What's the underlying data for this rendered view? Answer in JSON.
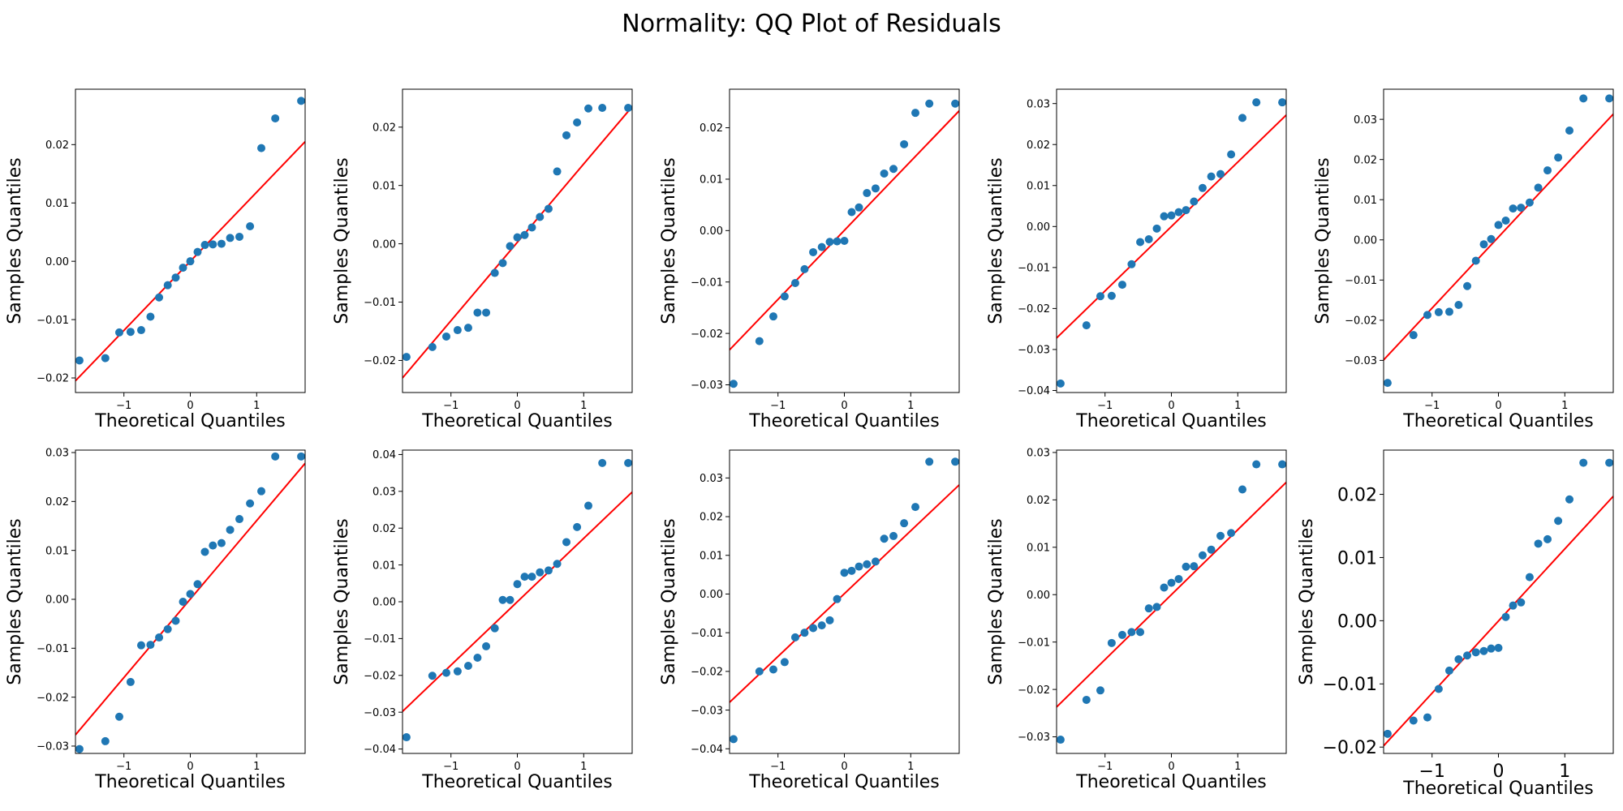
{
  "title": "Normality: QQ Plot of Residuals",
  "theme": {
    "point_color": "#1f77b4",
    "line_color": "#ff0000"
  },
  "chart_data": [
    {
      "type": "scatter",
      "xlabel": "Theoretical Quantiles",
      "ylabel": "Samples Quantiles",
      "xlim": [
        -1.73,
        1.73
      ],
      "ylim": [
        -0.0225,
        0.0295
      ],
      "xticks": [
        -1,
        0,
        1
      ],
      "xtick_labels": [
        "−1",
        "0",
        "1"
      ],
      "yticks": [
        -0.02,
        -0.01,
        0.0,
        0.01,
        0.02
      ],
      "ytick_labels": [
        "−0.02",
        "−0.01",
        "0.00",
        "0.01",
        "0.02"
      ],
      "line": [
        [
          -1.73,
          -0.0205
        ],
        [
          1.73,
          0.0205
        ]
      ],
      "x": [
        -1.67,
        -1.28,
        -1.07,
        -0.9,
        -0.74,
        -0.6,
        -0.47,
        -0.34,
        -0.22,
        -0.11,
        0.0,
        0.11,
        0.22,
        0.34,
        0.47,
        0.6,
        0.74,
        0.9,
        1.07,
        1.28,
        1.67
      ],
      "y": [
        -0.017,
        -0.0166,
        -0.0122,
        -0.0121,
        -0.0118,
        -0.0095,
        -0.0062,
        -0.0041,
        -0.0028,
        -0.0011,
        0.0,
        0.0016,
        0.0028,
        0.0029,
        0.003,
        0.004,
        0.0042,
        0.006,
        0.0194,
        0.0245,
        0.0275
      ]
    },
    {
      "type": "scatter",
      "xlabel": "Theoretical Quantiles",
      "ylabel": "Samples Quantiles",
      "xlim": [
        -1.73,
        1.73
      ],
      "ylim": [
        -0.0255,
        0.0265
      ],
      "xticks": [
        -1,
        0,
        1
      ],
      "xtick_labels": [
        "−1",
        "0",
        "1"
      ],
      "yticks": [
        -0.02,
        -0.01,
        0.0,
        0.01,
        0.02
      ],
      "ytick_labels": [
        "−0.02",
        "−0.01",
        "0.00",
        "0.01",
        "0.02"
      ],
      "line": [
        [
          -1.73,
          -0.023
        ],
        [
          1.73,
          0.0235
        ]
      ],
      "x": [
        -1.67,
        -1.28,
        -1.07,
        -0.9,
        -0.74,
        -0.6,
        -0.47,
        -0.34,
        -0.22,
        -0.11,
        0.0,
        0.11,
        0.22,
        0.34,
        0.47,
        0.6,
        0.74,
        0.9,
        1.07,
        1.28,
        1.67
      ],
      "y": [
        -0.0194,
        -0.0177,
        -0.0159,
        -0.0148,
        -0.0144,
        -0.0118,
        -0.0118,
        -0.005,
        -0.0033,
        -0.0004,
        0.0011,
        0.0015,
        0.0028,
        0.0046,
        0.006,
        0.0124,
        0.0186,
        0.0208,
        0.0232,
        0.0233,
        0.0233
      ]
    },
    {
      "type": "scatter",
      "xlabel": "Theoretical Quantiles",
      "ylabel": "Samples Quantiles",
      "xlim": [
        -1.73,
        1.73
      ],
      "ylim": [
        -0.0315,
        0.0275
      ],
      "xticks": [
        -1,
        0,
        1
      ],
      "xtick_labels": [
        "−1",
        "0",
        "1"
      ],
      "yticks": [
        -0.03,
        -0.02,
        -0.01,
        0.0,
        0.01,
        0.02
      ],
      "ytick_labels": [
        "−0.03",
        "−0.02",
        "−0.01",
        "0.00",
        "0.01",
        "0.02"
      ],
      "line": [
        [
          -1.73,
          -0.0232
        ],
        [
          1.73,
          0.0233
        ]
      ],
      "x": [
        -1.67,
        -1.28,
        -1.07,
        -0.9,
        -0.74,
        -0.6,
        -0.47,
        -0.34,
        -0.22,
        -0.11,
        0.0,
        0.11,
        0.22,
        0.34,
        0.47,
        0.6,
        0.74,
        0.9,
        1.07,
        1.28,
        1.67
      ],
      "y": [
        -0.0298,
        -0.0215,
        -0.0167,
        -0.0128,
        -0.0102,
        -0.0075,
        -0.0042,
        -0.0032,
        -0.0022,
        -0.0021,
        -0.002,
        0.0036,
        0.0045,
        0.0073,
        0.0082,
        0.0111,
        0.012,
        0.0168,
        0.0229,
        0.0247,
        0.0247
      ]
    },
    {
      "type": "scatter",
      "xlabel": "Theoretical Quantiles",
      "ylabel": "Samples Quantiles",
      "xlim": [
        -1.73,
        1.73
      ],
      "ylim": [
        -0.0405,
        0.0335
      ],
      "xticks": [
        -1,
        0,
        1
      ],
      "xtick_labels": [
        "−1",
        "0",
        "1"
      ],
      "yticks": [
        -0.04,
        -0.03,
        -0.02,
        -0.01,
        0.0,
        0.01,
        0.02,
        0.03
      ],
      "ytick_labels": [
        "−0.04",
        "−0.03",
        "−0.02",
        "−0.01",
        "0.00",
        "0.01",
        "0.02",
        "0.03"
      ],
      "line": [
        [
          -1.73,
          -0.0272
        ],
        [
          1.73,
          0.0272
        ]
      ],
      "x": [
        -1.67,
        -1.28,
        -1.07,
        -0.9,
        -0.74,
        -0.6,
        -0.47,
        -0.34,
        -0.22,
        -0.11,
        0.0,
        0.11,
        0.22,
        0.34,
        0.47,
        0.6,
        0.74,
        0.9,
        1.07,
        1.28,
        1.67
      ],
      "y": [
        -0.0383,
        -0.0241,
        -0.017,
        -0.0169,
        -0.0142,
        -0.0092,
        -0.0038,
        -0.0031,
        -0.0005,
        0.0025,
        0.0027,
        0.0035,
        0.004,
        0.0061,
        0.0094,
        0.0122,
        0.0128,
        0.0176,
        0.0265,
        0.0303,
        0.0303
      ]
    },
    {
      "type": "scatter",
      "xlabel": "Theoretical Quantiles",
      "ylabel": "Samples Quantiles",
      "xlim": [
        -1.73,
        1.73
      ],
      "ylim": [
        -0.038,
        0.0375
      ],
      "xticks": [
        -1,
        0,
        1
      ],
      "xtick_labels": [
        "−1",
        "0",
        "1"
      ],
      "yticks": [
        -0.03,
        -0.02,
        -0.01,
        0.0,
        0.01,
        0.02,
        0.03
      ],
      "ytick_labels": [
        "−0.03",
        "−0.02",
        "−0.01",
        "0.00",
        "0.01",
        "0.02",
        "0.03"
      ],
      "line": [
        [
          -1.73,
          -0.0299
        ],
        [
          1.73,
          0.0313
        ]
      ],
      "x": [
        -1.67,
        -1.28,
        -1.07,
        -0.9,
        -0.74,
        -0.6,
        -0.47,
        -0.34,
        -0.22,
        -0.11,
        0.0,
        0.11,
        0.22,
        0.34,
        0.47,
        0.6,
        0.74,
        0.9,
        1.07,
        1.28,
        1.67
      ],
      "y": [
        -0.0356,
        -0.0237,
        -0.0187,
        -0.018,
        -0.0179,
        -0.0162,
        -0.0115,
        -0.0052,
        -0.0011,
        0.0002,
        0.0037,
        0.0048,
        0.0078,
        0.008,
        0.0093,
        0.013,
        0.0173,
        0.0205,
        0.0272,
        0.0352,
        0.0352
      ]
    },
    {
      "type": "scatter",
      "xlabel": "Theoretical Quantiles",
      "ylabel": "Samples Quantiles",
      "xlim": [
        -1.73,
        1.73
      ],
      "ylim": [
        -0.0315,
        0.0305
      ],
      "xticks": [
        -1,
        0,
        1
      ],
      "xtick_labels": [
        "−1",
        "0",
        "1"
      ],
      "yticks": [
        -0.03,
        -0.02,
        -0.01,
        0.0,
        0.01,
        0.02,
        0.03
      ],
      "ytick_labels": [
        "−0.03",
        "−0.02",
        "−0.01",
        "0.00",
        "0.01",
        "0.02",
        "0.03"
      ],
      "line": [
        [
          -1.73,
          -0.0277
        ],
        [
          1.73,
          0.0278
        ]
      ],
      "x": [
        -1.67,
        -1.28,
        -1.07,
        -0.9,
        -0.74,
        -0.6,
        -0.47,
        -0.34,
        -0.22,
        -0.11,
        0.0,
        0.11,
        0.22,
        0.34,
        0.47,
        0.6,
        0.74,
        0.9,
        1.07,
        1.28,
        1.67
      ],
      "y": [
        -0.0306,
        -0.029,
        -0.024,
        -0.0169,
        -0.0094,
        -0.0093,
        -0.0078,
        -0.0061,
        -0.0044,
        -0.0005,
        0.0011,
        0.0031,
        0.0097,
        0.011,
        0.0115,
        0.0142,
        0.0164,
        0.0196,
        0.0221,
        0.0292,
        0.0292
      ]
    },
    {
      "type": "scatter",
      "xlabel": "Theoretical Quantiles",
      "ylabel": "Samples Quantiles",
      "xlim": [
        -1.73,
        1.73
      ],
      "ylim": [
        -0.0412,
        0.0412
      ],
      "xticks": [
        -1,
        0,
        1
      ],
      "xtick_labels": [
        "−1",
        "0",
        "1"
      ],
      "yticks": [
        -0.04,
        -0.03,
        -0.02,
        -0.01,
        0.0,
        0.01,
        0.02,
        0.03,
        0.04
      ],
      "ytick_labels": [
        "−0.04",
        "−0.03",
        "−0.02",
        "−0.01",
        "0.00",
        "0.01",
        "0.02",
        "0.03",
        "0.04"
      ],
      "line": [
        [
          -1.73,
          -0.0298
        ],
        [
          1.73,
          0.0298
        ]
      ],
      "x": [
        -1.67,
        -1.28,
        -1.07,
        -0.9,
        -0.74,
        -0.6,
        -0.47,
        -0.34,
        -0.22,
        -0.11,
        0.0,
        0.11,
        0.22,
        0.34,
        0.47,
        0.6,
        0.74,
        0.9,
        1.07,
        1.28,
        1.67
      ],
      "y": [
        -0.0368,
        -0.0201,
        -0.0193,
        -0.0189,
        -0.0174,
        -0.0152,
        -0.0121,
        -0.0072,
        0.0005,
        0.0005,
        0.0048,
        0.0068,
        0.0068,
        0.008,
        0.0085,
        0.0103,
        0.0162,
        0.0203,
        0.0261,
        0.0377,
        0.0377
      ]
    },
    {
      "type": "scatter",
      "xlabel": "Theoretical Quantiles",
      "ylabel": "Samples Quantiles",
      "xlim": [
        -1.73,
        1.73
      ],
      "ylim": [
        -0.0412,
        0.0372
      ],
      "xticks": [
        -1,
        0,
        1
      ],
      "xtick_labels": [
        "−1",
        "0",
        "1"
      ],
      "yticks": [
        -0.04,
        -0.03,
        -0.02,
        -0.01,
        0.0,
        0.01,
        0.02,
        0.03
      ],
      "ytick_labels": [
        "−0.04",
        "−0.03",
        "−0.02",
        "−0.01",
        "0.00",
        "0.01",
        "0.02",
        "0.03"
      ],
      "line": [
        [
          -1.73,
          -0.028
        ],
        [
          1.73,
          0.0282
        ]
      ],
      "x": [
        -1.67,
        -1.28,
        -1.07,
        -0.9,
        -0.74,
        -0.6,
        -0.47,
        -0.34,
        -0.22,
        -0.11,
        0.0,
        0.11,
        0.22,
        0.34,
        0.47,
        0.6,
        0.74,
        0.9,
        1.07,
        1.28,
        1.67
      ],
      "y": [
        -0.0375,
        -0.02,
        -0.0195,
        -0.0176,
        -0.0112,
        -0.01,
        -0.0088,
        -0.0081,
        -0.0068,
        -0.0013,
        0.0055,
        0.006,
        0.0071,
        0.0077,
        0.0084,
        0.0143,
        0.015,
        0.0183,
        0.0225,
        0.0342,
        0.0342
      ]
    },
    {
      "type": "scatter",
      "xlabel": "Theoretical Quantiles",
      "ylabel": "Samples Quantiles",
      "xlim": [
        -1.73,
        1.73
      ],
      "ylim": [
        -0.0335,
        0.0305
      ],
      "xticks": [
        -1,
        0,
        1
      ],
      "xtick_labels": [
        "−1",
        "0",
        "1"
      ],
      "yticks": [
        -0.03,
        -0.02,
        -0.01,
        0.0,
        0.01,
        0.02,
        0.03
      ],
      "ytick_labels": [
        "−0.03",
        "−0.02",
        "−0.01",
        "0.00",
        "0.01",
        "0.02",
        "0.03"
      ],
      "line": [
        [
          -1.73,
          -0.0237
        ],
        [
          1.73,
          0.0237
        ]
      ],
      "x": [
        -1.67,
        -1.28,
        -1.07,
        -0.9,
        -0.74,
        -0.6,
        -0.47,
        -0.34,
        -0.22,
        -0.11,
        0.0,
        0.11,
        0.22,
        0.34,
        0.47,
        0.6,
        0.74,
        0.9,
        1.07,
        1.28,
        1.67
      ],
      "y": [
        -0.0306,
        -0.0222,
        -0.0202,
        -0.0102,
        -0.0085,
        -0.0079,
        -0.0079,
        -0.0029,
        -0.0026,
        0.0015,
        0.0025,
        0.0033,
        0.0059,
        0.006,
        0.0083,
        0.0095,
        0.0124,
        0.013,
        0.0222,
        0.0275,
        0.0275
      ]
    },
    {
      "type": "scatter",
      "xlabel": "Theoretical Quantiles",
      "ylabel": "Samples Quantiles",
      "xlim": [
        -1.73,
        1.73
      ],
      "ylim": [
        -0.021,
        0.027
      ],
      "xticks": [
        -1,
        0,
        1
      ],
      "xtick_labels": [
        "−1",
        "0",
        "1"
      ],
      "yticks": [
        -0.02,
        -0.01,
        0.0,
        0.01,
        0.02
      ],
      "ytick_labels": [
        "−0.02",
        "−0.01",
        "0.00",
        "0.01",
        "0.02"
      ],
      "line": [
        [
          -1.73,
          -0.0198
        ],
        [
          1.73,
          0.0197
        ]
      ],
      "x": [
        -1.67,
        -1.28,
        -1.07,
        -0.9,
        -0.74,
        -0.6,
        -0.47,
        -0.34,
        -0.22,
        -0.11,
        0.0,
        0.11,
        0.22,
        0.34,
        0.47,
        0.6,
        0.74,
        0.9,
        1.07,
        1.28,
        1.67
      ],
      "y": [
        -0.0179,
        -0.0158,
        -0.0153,
        -0.0108,
        -0.0079,
        -0.0061,
        -0.0055,
        -0.005,
        -0.0048,
        -0.0044,
        -0.0043,
        0.0006,
        0.0024,
        0.0029,
        0.0069,
        0.0122,
        0.0129,
        0.0158,
        0.0192,
        0.025,
        0.025
      ]
    }
  ]
}
